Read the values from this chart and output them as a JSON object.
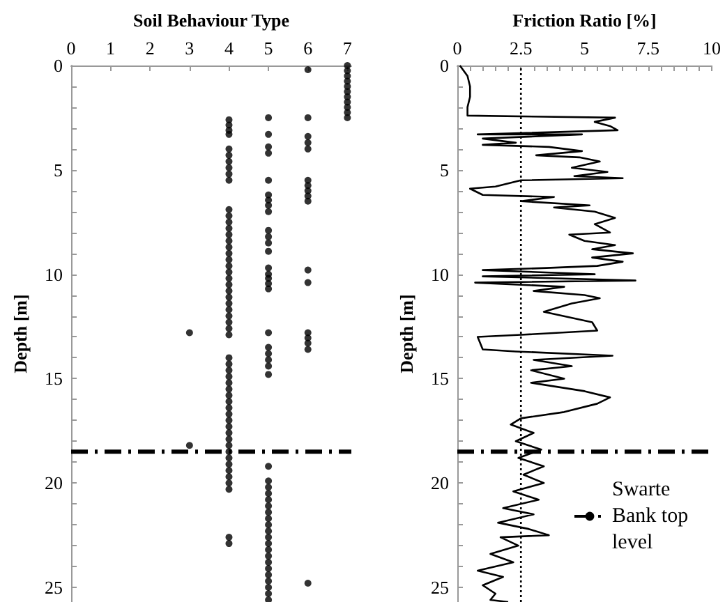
{
  "chart_data": [
    {
      "type": "scatter",
      "xlabel": "Soil Behaviour Type",
      "ylabel": "Depth [m]",
      "marker": "circle",
      "grid": false,
      "legend": false,
      "xlim": [
        0,
        7.1
      ],
      "xticks": [
        0,
        1,
        2,
        3,
        4,
        5,
        6,
        7
      ],
      "ylim": [
        25.7,
        0
      ],
      "yticks": [
        0,
        {
          "value": 1,
          "label": null
        },
        {
          "value": 2,
          "label": null
        },
        {
          "value": 3,
          "label": null
        },
        {
          "value": 4,
          "label": null
        },
        5,
        {
          "value": 6,
          "label": null
        },
        {
          "value": 7,
          "label": null
        },
        {
          "value": 8,
          "label": null
        },
        {
          "value": 9,
          "label": null
        },
        10,
        {
          "value": 11,
          "label": null
        },
        {
          "value": 12,
          "label": null
        },
        {
          "value": 13,
          "label": null
        },
        {
          "value": 14,
          "label": null
        },
        15,
        {
          "value": 16,
          "label": null
        },
        {
          "value": 17,
          "label": null
        },
        {
          "value": 18,
          "label": null
        },
        {
          "value": 19,
          "label": null
        },
        20,
        {
          "value": 21,
          "label": null
        },
        {
          "value": 22,
          "label": null
        },
        {
          "value": 23,
          "label": null
        },
        {
          "value": 24,
          "label": null
        },
        25
      ],
      "series": [
        {
          "color": "#000000",
          "x": [
            7,
            7,
            7,
            7,
            7,
            7,
            7,
            7,
            7,
            7,
            7
          ],
          "values": [
            0,
            0.25,
            0.5,
            0.75,
            1,
            1.25,
            1.5,
            1.75,
            2,
            2.25,
            2.5
          ]
        },
        {
          "color": "#000000",
          "x": [
            6,
            6,
            6,
            6,
            6,
            6,
            6,
            6,
            6,
            6,
            6,
            6,
            6,
            6,
            6,
            6,
            6
          ],
          "values": [
            0.2,
            2.5,
            3.4,
            3.7,
            4,
            5.5,
            5.75,
            6,
            6.25,
            6.5,
            9.8,
            10.4,
            12.8,
            13.05,
            13.3,
            13.6,
            24.8
          ]
        },
        {
          "color": "#000000",
          "x": [
            5,
            5,
            5,
            5,
            5,
            5,
            5,
            5,
            5,
            5,
            5,
            5,
            5,
            5,
            5,
            5,
            5,
            5,
            5,
            5,
            5,
            5,
            5,
            5,
            5,
            5,
            5,
            5,
            5,
            5,
            5,
            5,
            5,
            5,
            5,
            5,
            5,
            5,
            5,
            5,
            5,
            5,
            5,
            5,
            5
          ],
          "values": [
            2.5,
            3.3,
            3.9,
            4.2,
            5.5,
            6.2,
            6.45,
            6.7,
            7,
            7.9,
            8.2,
            8.5,
            8.9,
            9.7,
            10,
            10.2,
            10.45,
            10.7,
            12.8,
            13.5,
            13.8,
            14.1,
            14.4,
            14.8,
            19.2,
            19.9,
            20.2,
            20.5,
            20.8,
            21.1,
            21.4,
            21.7,
            22,
            22.3,
            22.6,
            22.9,
            23.2,
            23.5,
            23.8,
            24.1,
            24.4,
            24.7,
            25,
            25.3,
            25.6
          ]
        },
        {
          "color": "#000000",
          "x": [
            4,
            4,
            4,
            4,
            4,
            4,
            4,
            4,
            4,
            4,
            4,
            4,
            4,
            4,
            4,
            4,
            4,
            4,
            4,
            4,
            4,
            4,
            4,
            4,
            4,
            4,
            4,
            4,
            4,
            4,
            4,
            4,
            4,
            4,
            4,
            4,
            4,
            4,
            4,
            4,
            4,
            4,
            4,
            4,
            4,
            4,
            4,
            4,
            4,
            4,
            4,
            4,
            4,
            4,
            4
          ],
          "values": [
            2.6,
            2.85,
            3.1,
            3.3,
            4,
            4.3,
            4.6,
            4.9,
            5.2,
            5.5,
            6.9,
            7.2,
            7.5,
            7.8,
            8.1,
            8.4,
            8.7,
            9,
            9.3,
            9.6,
            9.9,
            10.2,
            10.5,
            10.8,
            11.1,
            11.4,
            11.7,
            12,
            12.3,
            12.6,
            12.9,
            14,
            14.3,
            14.6,
            14.9,
            15.2,
            15.5,
            15.8,
            16.1,
            16.4,
            16.7,
            17,
            17.3,
            17.6,
            17.9,
            18.2,
            18.5,
            18.8,
            19.1,
            19.4,
            19.7,
            20,
            20.3,
            22.6,
            22.9
          ]
        },
        {
          "color": "#000000",
          "x": [
            3,
            3
          ],
          "values": [
            12.8,
            18.2
          ]
        }
      ],
      "ref_lines": [
        {
          "axis": "y",
          "value": 18.5,
          "color": "#000000",
          "line_style": "dashdot"
        }
      ]
    },
    {
      "type": "line",
      "xlabel": "Friction Ratio [%]",
      "ylabel": "Depth [m]",
      "marker": "none",
      "grid": false,
      "legend": "bottom right",
      "xlim": [
        0,
        10
      ],
      "xticks": [
        0,
        {
          "value": 0.5,
          "label": null
        },
        {
          "value": 1,
          "label": null
        },
        {
          "value": 1.5,
          "label": null
        },
        {
          "value": 2,
          "label": null
        },
        {
          "value": 2.5,
          "label": "2.5"
        },
        {
          "value": 3,
          "label": null
        },
        {
          "value": 3.5,
          "label": null
        },
        {
          "value": 4,
          "label": null
        },
        {
          "value": 4.5,
          "label": null
        },
        5,
        {
          "value": 5.5,
          "label": null
        },
        {
          "value": 6,
          "label": null
        },
        {
          "value": 6.5,
          "label": null
        },
        {
          "value": 7,
          "label": null
        },
        {
          "value": 7.5,
          "label": "7.5"
        },
        {
          "value": 8,
          "label": null
        },
        {
          "value": 8.5,
          "label": null
        },
        {
          "value": 9,
          "label": null
        },
        {
          "value": 9.5,
          "label": null
        },
        10
      ],
      "ylim": [
        25.7,
        0
      ],
      "yticks": [
        0,
        {
          "value": 1,
          "label": null
        },
        {
          "value": 2,
          "label": null
        },
        {
          "value": 3,
          "label": null
        },
        {
          "value": 4,
          "label": null
        },
        5,
        {
          "value": 6,
          "label": null
        },
        {
          "value": 7,
          "label": null
        },
        {
          "value": 8,
          "label": null
        },
        {
          "value": 9,
          "label": null
        },
        10,
        {
          "value": 11,
          "label": null
        },
        {
          "value": 12,
          "label": null
        },
        {
          "value": 13,
          "label": null
        },
        {
          "value": 14,
          "label": null
        },
        15,
        {
          "value": 16,
          "label": null
        },
        {
          "value": 17,
          "label": null
        },
        {
          "value": 18,
          "label": null
        },
        {
          "value": 19,
          "label": null
        },
        20,
        {
          "value": 21,
          "label": null
        },
        {
          "value": 22,
          "label": null
        },
        {
          "value": 23,
          "label": null
        },
        {
          "value": 24,
          "label": null
        },
        25
      ],
      "series": [
        {
          "color": "#000000",
          "x": [
            0.1,
            0.4,
            0.5,
            0.5,
            0.4,
            0.4,
            6.2,
            5.4,
            6.0,
            6.3,
            0.8,
            4.9,
            1.0,
            2.3,
            1.0,
            3.6,
            4.9,
            3.1,
            4.8,
            5.6,
            4.5,
            5.9,
            4.6,
            6.5,
            2.5,
            1.5,
            0.5,
            1.0,
            3.8,
            2.5,
            5.2,
            3.8,
            5.4,
            6.2,
            5.4,
            6.0,
            4.4,
            5.0,
            6.2,
            5.3,
            6.9,
            5.3,
            6.5,
            5.5,
            3.5,
            1.0,
            5.4,
            1.0,
            7.0,
            0.7,
            4.2,
            3.0,
            5.0,
            5.6,
            4.5,
            3.4,
            5.3,
            5.5,
            2.5,
            0.8,
            1.0,
            2.3,
            6.1,
            3.0,
            4.5,
            2.9,
            4.2,
            2.9,
            5.0,
            6.0,
            5.5,
            4.2,
            2.5,
            2.1,
            3.0,
            2.3,
            3.3,
            2.4,
            3.4,
            2.6,
            3.4,
            2.2,
            3.2,
            1.8,
            3.0,
            1.6,
            2.8,
            3.6,
            1.7,
            2.4,
            1.3,
            2.2,
            0.8,
            1.8,
            1.0,
            1.5,
            1.3,
            2.0
          ],
          "values": [
            0,
            0.5,
            1,
            1.5,
            2,
            2.4,
            2.5,
            2.7,
            2.9,
            3.1,
            3.3,
            3.3,
            3.5,
            3.7,
            3.8,
            3.9,
            4.1,
            4.3,
            4.4,
            4.6,
            4.9,
            5.1,
            5.3,
            5.4,
            5.5,
            5.8,
            5.9,
            6.2,
            6.3,
            6.5,
            6.7,
            6.8,
            7.0,
            7.3,
            7.6,
            8.0,
            8.1,
            8.4,
            8.6,
            8.8,
            9.0,
            9.2,
            9.4,
            9.6,
            9.7,
            9.8,
            10.0,
            10.1,
            10.3,
            10.4,
            10.6,
            10.8,
            11.0,
            11.15,
            11.4,
            11.8,
            12.3,
            12.7,
            12.9,
            13.0,
            13.6,
            13.7,
            13.9,
            14.1,
            14.4,
            14.6,
            15.0,
            15.2,
            15.6,
            15.9,
            16.2,
            16.6,
            16.9,
            17.2,
            17.6,
            18.0,
            18.4,
            18.8,
            19.2,
            19.6,
            20.0,
            20.4,
            20.8,
            21.2,
            21.5,
            21.9,
            22.2,
            22.5,
            22.6,
            23.0,
            23.4,
            23.8,
            24.2,
            24.5,
            24.9,
            25.3,
            25.6,
            25.7
          ]
        }
      ],
      "ref_lines": [
        {
          "axis": "x",
          "value": 2.5,
          "color": "#000000",
          "line_style": "dotted"
        },
        {
          "axis": "y",
          "value": 18.5,
          "color": "#000000",
          "line_style": "dashdot",
          "label": "Swarte Bank top level"
        }
      ]
    }
  ]
}
